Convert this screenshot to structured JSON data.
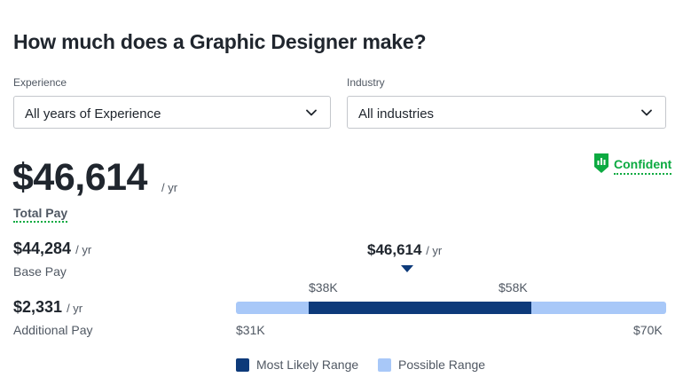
{
  "title": "How much does a Graphic Designer make?",
  "filters": {
    "experience": {
      "label": "Experience",
      "value": "All years of Experience"
    },
    "industry": {
      "label": "Industry",
      "value": "All industries"
    }
  },
  "total_pay": {
    "amount": "$46,614",
    "per": "/ yr",
    "label": "Total Pay"
  },
  "confidence": {
    "label": "Confident",
    "color": "#0caa41",
    "icon": "confidence-chart-icon"
  },
  "base_pay": {
    "amount": "$44,284",
    "per": "/ yr",
    "label": "Base Pay"
  },
  "additional_pay": {
    "amount": "$2,331",
    "per": "/ yr",
    "label": "Additional Pay"
  },
  "range": {
    "marker_value": "$46,614",
    "marker_per": "/ yr",
    "likely_low": "$38K",
    "likely_high": "$58K",
    "min": "$31K",
    "max": "$70K",
    "likely_color": "#0d3a7a",
    "possible_color": "#a8c8f8"
  },
  "legend": {
    "most_likely": "Most Likely Range",
    "possible": "Possible Range"
  }
}
